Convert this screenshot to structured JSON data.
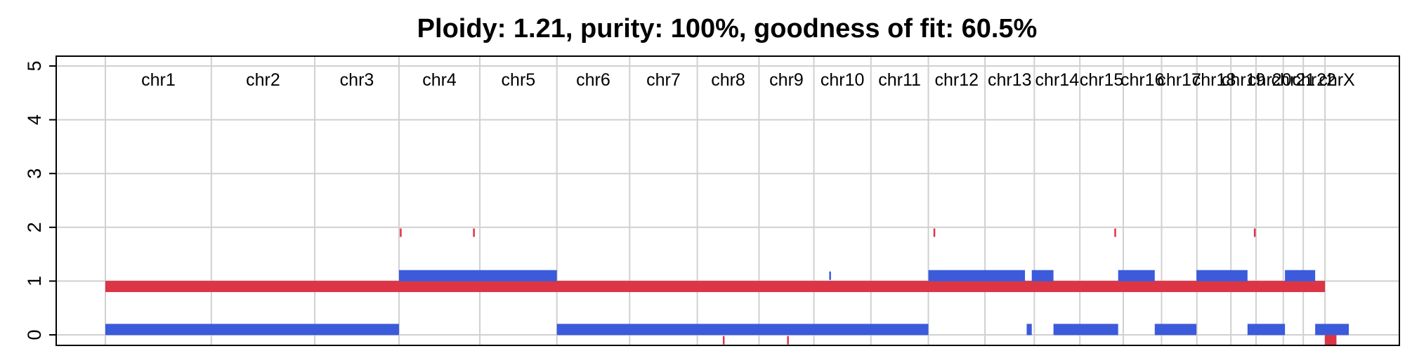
{
  "chart_data": {
    "type": "segment-plot",
    "title": "Ploidy: 1.21, purity: 100%, goodness of fit: 60.5%",
    "xlabel": "",
    "ylabel": "",
    "ylim": [
      0,
      5
    ],
    "yticks": [
      "0",
      "1",
      "2",
      "3",
      "4",
      "5"
    ],
    "grid": true,
    "chromosomes": [
      {
        "name": "chr1",
        "start": 0,
        "end": 249
      },
      {
        "name": "chr2",
        "start": 249,
        "end": 492
      },
      {
        "name": "chr3",
        "start": 492,
        "end": 690
      },
      {
        "name": "chr4",
        "start": 690,
        "end": 880
      },
      {
        "name": "chr5",
        "start": 880,
        "end": 1061
      },
      {
        "name": "chr6",
        "start": 1061,
        "end": 1232
      },
      {
        "name": "chr7",
        "start": 1232,
        "end": 1391
      },
      {
        "name": "chr8",
        "start": 1391,
        "end": 1536
      },
      {
        "name": "chr9",
        "start": 1536,
        "end": 1665
      },
      {
        "name": "chr10",
        "start": 1665,
        "end": 1799
      },
      {
        "name": "chr11",
        "start": 1799,
        "end": 1934
      },
      {
        "name": "chr12",
        "start": 1934,
        "end": 2067
      },
      {
        "name": "chr13",
        "start": 2067,
        "end": 2183
      },
      {
        "name": "chr14",
        "start": 2183,
        "end": 2290
      },
      {
        "name": "chr15",
        "start": 2290,
        "end": 2392
      },
      {
        "name": "chr16",
        "start": 2392,
        "end": 2482
      },
      {
        "name": "chr17",
        "start": 2482,
        "end": 2565
      },
      {
        "name": "chr18",
        "start": 2565,
        "end": 2645
      },
      {
        "name": "chr19",
        "start": 2645,
        "end": 2704
      },
      {
        "name": "chr20",
        "start": 2704,
        "end": 2768
      },
      {
        "name": "chr21",
        "start": 2768,
        "end": 2815
      },
      {
        "name": "chr22",
        "start": 2815,
        "end": 2866
      },
      {
        "name": "chrX",
        "start": 2866,
        "end": 2922
      }
    ],
    "series": [
      {
        "color": "#dc3545",
        "segments": [
          {
            "start": 0,
            "end": 2866,
            "value": 0.9
          },
          {
            "start": 2866,
            "end": 2893,
            "value": -0.1
          },
          {
            "start": 692,
            "end": 693,
            "value": 1.9
          },
          {
            "start": 864,
            "end": 865,
            "value": 1.9
          },
          {
            "start": 1946,
            "end": 1947,
            "value": 1.9
          },
          {
            "start": 2371,
            "end": 2372,
            "value": 1.9
          },
          {
            "start": 2699,
            "end": 2700,
            "value": 1.9
          },
          {
            "start": 1451,
            "end": 1452,
            "value": -0.1
          },
          {
            "start": 1602,
            "end": 1603,
            "value": -0.1
          }
        ]
      },
      {
        "color": "#3b5bdb",
        "segments": [
          {
            "start": 0,
            "end": 690,
            "value": 0.1
          },
          {
            "start": 690,
            "end": 1061,
            "value": 1.1
          },
          {
            "start": 1061,
            "end": 1934,
            "value": 0.1
          },
          {
            "start": 1701,
            "end": 1702,
            "value": 1.1
          },
          {
            "start": 1934,
            "end": 2161,
            "value": 1.1
          },
          {
            "start": 2165,
            "end": 2177,
            "value": 0.1
          },
          {
            "start": 2177,
            "end": 2228,
            "value": 1.1
          },
          {
            "start": 2228,
            "end": 2380,
            "value": 0.1
          },
          {
            "start": 2380,
            "end": 2466,
            "value": 1.1
          },
          {
            "start": 2466,
            "end": 2564,
            "value": 0.1
          },
          {
            "start": 2564,
            "end": 2684,
            "value": 1.1
          },
          {
            "start": 2684,
            "end": 2772,
            "value": 0.1
          },
          {
            "start": 2772,
            "end": 2843,
            "value": 1.1
          },
          {
            "start": 2843,
            "end": 2922,
            "value": 0.1
          }
        ]
      }
    ]
  }
}
